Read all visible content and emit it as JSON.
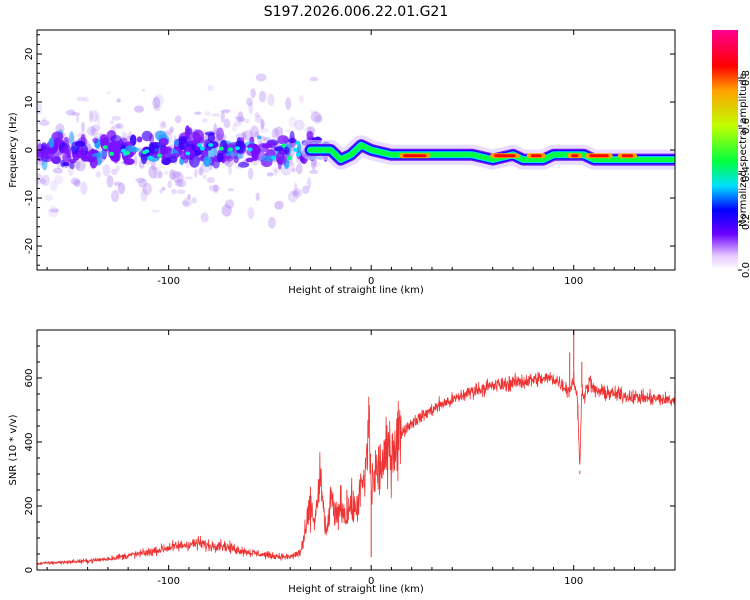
{
  "chart_data": [
    {
      "type": "heatmap",
      "title": "S197.2026.006.22.01.G21",
      "xlabel": "Height of straight line (km)",
      "ylabel": "Frequency (Hz)",
      "xlim": [
        -165,
        150
      ],
      "ylim": [
        -25,
        25
      ],
      "xticks": [
        "-100",
        "0",
        "100"
      ],
      "xtick_values": [
        -100,
        0,
        100
      ],
      "yticks": [
        "-20",
        "-10",
        "0",
        "10",
        "20"
      ],
      "ytick_values": [
        -20,
        -10,
        0,
        10,
        20
      ],
      "ridge": {
        "description": "dominant frequency track (Hz) versus height (km)",
        "x": [
          -30,
          -25,
          -20,
          -15,
          -10,
          -5,
          0,
          10,
          20,
          30,
          40,
          50,
          60,
          70,
          75,
          80,
          85,
          90,
          95,
          100,
          105,
          110,
          120,
          130,
          140,
          150
        ],
        "y": [
          0,
          0,
          0,
          -2,
          -1,
          1,
          0,
          -1,
          -1,
          -1,
          -1,
          -1,
          -2,
          -1,
          -2,
          -2,
          -2,
          -1,
          -1,
          -1,
          -1,
          -2,
          -2,
          -2,
          -2,
          -2
        ]
      },
      "colorbar": {
        "label": "Normalized spectral amplitude",
        "range": [
          0.0,
          1.0
        ],
        "ticks": [
          "0.0",
          "0.2",
          "0.4",
          "0.6",
          "0.8"
        ],
        "tick_values": [
          0.0,
          0.2,
          0.4,
          0.6,
          0.8
        ],
        "colors": [
          "#ffffff",
          "#6a00ff",
          "#0000ff",
          "#00e0ff",
          "#00ff40",
          "#c0ff00",
          "#ffa000",
          "#ff0000",
          "#ff0090"
        ]
      }
    },
    {
      "type": "line",
      "xlabel": "Height of straight line (km)",
      "ylabel": "SNR (10 * v/v)",
      "xlim": [
        -165,
        150
      ],
      "ylim": [
        0,
        750
      ],
      "xticks": [
        "-100",
        "0",
        "100"
      ],
      "xtick_values": [
        -100,
        0,
        100
      ],
      "yticks": [
        "0",
        "200",
        "400",
        "600"
      ],
      "ytick_values": [
        0,
        200,
        400,
        600
      ],
      "color": "#ee3333",
      "series": [
        {
          "name": "SNR",
          "x": [
            -165,
            -150,
            -140,
            -130,
            -120,
            -110,
            -100,
            -90,
            -85,
            -80,
            -75,
            -70,
            -60,
            -50,
            -40,
            -35,
            -33,
            -30,
            -28,
            -25,
            -22,
            -20,
            -18,
            -15,
            -12,
            -10,
            -8,
            -5,
            -3,
            -1,
            0,
            2,
            5,
            10,
            15,
            20,
            25,
            30,
            35,
            40,
            50,
            60,
            70,
            80,
            90,
            95,
            98,
            100,
            102,
            103,
            104,
            105,
            108,
            110,
            120,
            130,
            140,
            150
          ],
          "y": [
            20,
            25,
            28,
            35,
            45,
            55,
            70,
            80,
            85,
            75,
            80,
            70,
            55,
            45,
            40,
            55,
            100,
            200,
            150,
            280,
            100,
            230,
            160,
            200,
            170,
            210,
            180,
            250,
            280,
            470,
            250,
            300,
            330,
            380,
            430,
            460,
            480,
            500,
            520,
            530,
            560,
            575,
            585,
            595,
            600,
            575,
            560,
            600,
            520,
            310,
            570,
            545,
            590,
            560,
            550,
            540,
            535,
            530
          ],
          "spikes": {
            "x": [
              -30,
              -25,
              -20,
              -12,
              -1,
              0,
              98,
              100,
              102,
              103,
              104
            ],
            "y": [
              260,
              300,
              260,
              250,
              500,
              40,
              680,
              750,
              470,
              300,
              650
            ]
          }
        }
      ]
    }
  ]
}
